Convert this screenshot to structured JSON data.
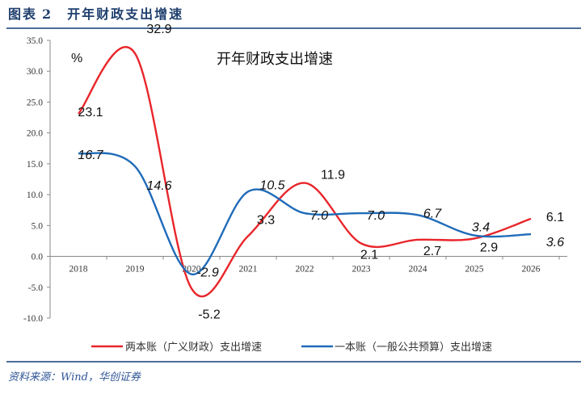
{
  "header": {
    "prefix": "图表",
    "number": "2",
    "title": "开年财政支出增速"
  },
  "source": "资料来源：Wind，华创证券",
  "chart_data": {
    "type": "line",
    "title": "开年财政支出增速",
    "ylabel": "%",
    "xlabel": "",
    "categories": [
      "2018",
      "2019",
      "2020",
      "2021",
      "2022",
      "2023",
      "2024",
      "2025",
      "2026"
    ],
    "ylim": [
      -10,
      35
    ],
    "yticks": [
      "-10.0",
      "-5.0",
      "0.0",
      "5.0",
      "10.0",
      "15.0",
      "20.0",
      "25.0",
      "30.0",
      "35.0"
    ],
    "legend_position": "bottom",
    "series": [
      {
        "name": "两本账（广义财政）支出增速",
        "color": "#e8262b",
        "values": [
          23.1,
          32.9,
          -5.2,
          3.3,
          11.9,
          2.1,
          2.7,
          2.9,
          6.1
        ],
        "labels": [
          "23.1",
          "32.9",
          "-5.2",
          "3.3",
          "11.9",
          "2.1",
          "2.7",
          "2.9",
          "6.1"
        ]
      },
      {
        "name": "一本账（一般公共预算）支出增速",
        "color": "#1f6bb8",
        "values": [
          16.7,
          14.6,
          -2.9,
          10.5,
          7.0,
          7.0,
          6.7,
          3.4,
          3.6
        ],
        "labels": [
          "16.7",
          "14.6",
          "-2.9",
          "10.5",
          "7.0",
          "7.0",
          "6.7",
          "3.4",
          "3.6"
        ]
      }
    ]
  }
}
